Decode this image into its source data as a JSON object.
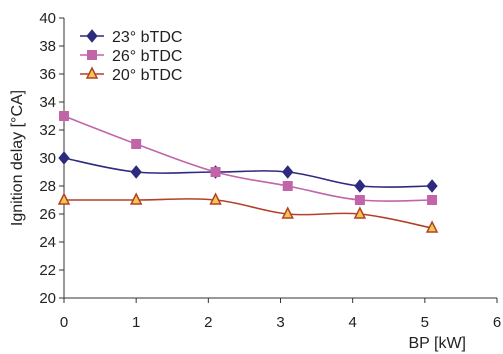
{
  "chart_data": {
    "type": "line",
    "title": "",
    "xlabel": "BP [kW]",
    "ylabel": "Ignition delay [°CA]",
    "xlim": [
      0,
      6
    ],
    "ylim": [
      20,
      40
    ],
    "x_ticks": [
      "0",
      "1",
      "2",
      "3",
      "4",
      "5",
      "6"
    ],
    "y_ticks": [
      "20",
      "22",
      "24",
      "26",
      "28",
      "30",
      "32",
      "34",
      "36",
      "38",
      "40"
    ],
    "grid": false,
    "legend_position": "top-left",
    "series": [
      {
        "name": "23° bTDC",
        "marker": "diamond",
        "color": "#2e2a7e",
        "points": [
          [
            0,
            30
          ],
          [
            1,
            29
          ],
          [
            2.1,
            29
          ],
          [
            3.1,
            29
          ],
          [
            4.1,
            28
          ],
          [
            5.1,
            28
          ]
        ]
      },
      {
        "name": "26° bTDC",
        "marker": "square",
        "color": "#c264a8",
        "points": [
          [
            0,
            33
          ],
          [
            1,
            31
          ],
          [
            2.1,
            29
          ],
          [
            3.1,
            28
          ],
          [
            4.1,
            27
          ],
          [
            5.1,
            27
          ]
        ]
      },
      {
        "name": "20° bTDC",
        "marker": "triangle",
        "color": "#b3402a",
        "fill": "#f2c94c",
        "points": [
          [
            0,
            27
          ],
          [
            1,
            27
          ],
          [
            2.1,
            27
          ],
          [
            3.1,
            26
          ],
          [
            4.1,
            26
          ],
          [
            5.1,
            25
          ]
        ]
      }
    ]
  }
}
